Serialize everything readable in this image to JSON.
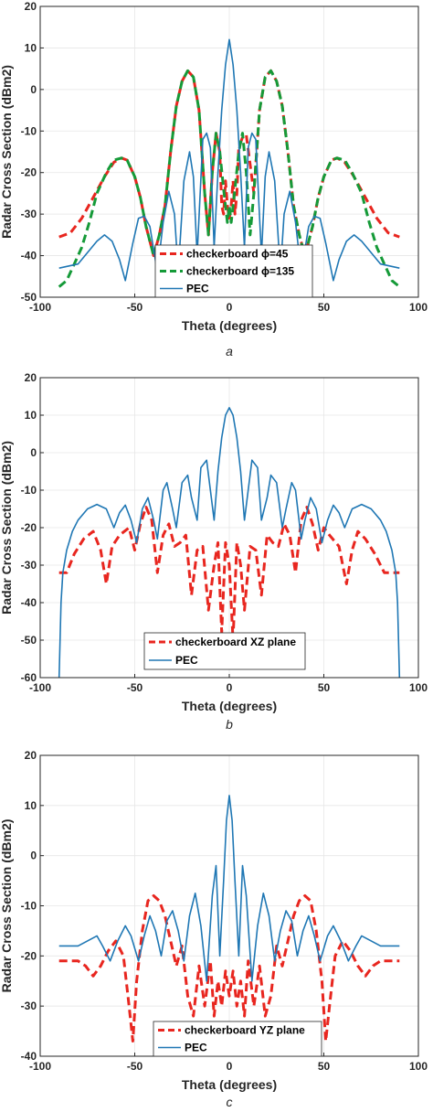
{
  "chart_data": [
    {
      "type": "line",
      "label": "a",
      "xlabel": "Theta (degrees)",
      "ylabel": "Radar Cross Section (dBm2)",
      "xlim": [
        -100,
        100
      ],
      "ylim": [
        -50,
        20
      ],
      "xticks": [
        -100,
        -50,
        0,
        50,
        100
      ],
      "xtick_labels": [
        "-100",
        "-50",
        "0",
        "50",
        "100"
      ],
      "yticks": [
        20,
        10,
        0,
        -10,
        -20,
        -30,
        -40,
        -50
      ],
      "ytick_labels": [
        "20",
        "10",
        "0",
        "-10",
        "-20",
        "-30",
        "-40",
        "-50"
      ],
      "grid": true,
      "legend_position": "bottom-center",
      "series": [
        {
          "name": "checkerboard ϕ=45",
          "color": "#e8261f",
          "dashed": true,
          "x": [
            -90,
            -84,
            -78,
            -72,
            -66,
            -61,
            -57,
            -54,
            -50,
            -47,
            -44,
            -40,
            -37,
            -34,
            -31,
            -28,
            -25,
            -22,
            -19,
            -16,
            -13,
            -11,
            -9,
            -7,
            -5,
            -4,
            -3,
            -2,
            -1,
            0,
            1,
            2,
            3,
            4,
            5,
            7,
            9,
            11,
            13,
            16,
            19,
            22,
            25,
            28,
            31,
            34,
            37,
            40,
            44,
            47,
            50,
            54,
            57,
            61,
            66,
            72,
            78,
            84,
            90
          ],
          "y": [
            -35.5,
            -34.5,
            -31,
            -26,
            -21,
            -17.5,
            -16.5,
            -17,
            -21,
            -26,
            -33,
            -40,
            -35,
            -28,
            -15,
            -4,
            2,
            4.5,
            3,
            -5,
            -25,
            -35,
            -20,
            -10.5,
            -15,
            -28,
            -30,
            -22,
            -28,
            -31,
            -28,
            -22,
            -30,
            -25,
            -14,
            -11.5,
            -11,
            -18,
            -25,
            -5,
            3,
            4.5,
            2,
            -4,
            -15,
            -28,
            -35,
            -40,
            -33,
            -26,
            -21,
            -17,
            -16.5,
            -17.5,
            -21,
            -26,
            -31,
            -34.5,
            -35.5
          ]
        },
        {
          "name": "checkerboard ϕ=135",
          "color": "#159a38",
          "dashed": true,
          "x": [
            -90,
            -86,
            -82,
            -78,
            -74,
            -70,
            -65,
            -61,
            -57,
            -54,
            -50,
            -47,
            -44,
            -40,
            -37,
            -34,
            -31,
            -28,
            -25,
            -22,
            -19,
            -16,
            -13,
            -11,
            -9,
            -7,
            -5,
            -3,
            -1,
            0,
            1,
            3,
            5,
            7,
            9,
            11,
            13,
            16,
            19,
            22,
            25,
            28,
            31,
            34,
            37,
            40,
            44,
            47,
            50,
            54,
            57,
            61,
            65,
            70,
            74,
            78,
            82,
            86,
            90
          ],
          "y": [
            -47.5,
            -46,
            -42,
            -38,
            -32,
            -25,
            -20,
            -17,
            -16.5,
            -17,
            -21,
            -26,
            -33,
            -40,
            -35,
            -28,
            -15,
            -4,
            2,
            4.5,
            3,
            -5,
            -25,
            -35,
            -20,
            -10.5,
            -15,
            -24,
            -32,
            -28,
            -32,
            -24,
            -15,
            -10.5,
            -20,
            -35,
            -25,
            -5,
            3,
            4.5,
            2,
            -4,
            -15,
            -28,
            -35,
            -40,
            -33,
            -26,
            -21,
            -17,
            -16.5,
            -17,
            -20,
            -25,
            -32,
            -38,
            -42,
            -46,
            -47.5
          ]
        },
        {
          "name": "PEC",
          "color": "#1f77b4",
          "dashed": false,
          "x": [
            -90,
            -80,
            -70,
            -66,
            -62,
            -58,
            -55,
            -51,
            -48,
            -45,
            -42,
            -38,
            -35,
            -32,
            -29,
            -27,
            -24,
            -21,
            -19,
            -17,
            -14,
            -12,
            -10,
            -8,
            -6,
            -4,
            -2,
            0,
            2,
            4,
            6,
            8,
            10,
            12,
            14,
            17,
            19,
            21,
            24,
            27,
            29,
            32,
            35,
            38,
            42,
            45,
            48,
            51,
            55,
            58,
            62,
            66,
            70,
            80,
            90
          ],
          "y": [
            -43,
            -42,
            -36.5,
            -35,
            -36.5,
            -41,
            -46,
            -37,
            -31,
            -30.5,
            -33,
            -44,
            -32,
            -24.5,
            -30,
            -44,
            -22,
            -15,
            -21,
            -40,
            -12,
            -10.5,
            -14,
            -38,
            -20,
            -5,
            6,
            12,
            6,
            -5,
            -20,
            -38,
            -14,
            -10.5,
            -12,
            -40,
            -21,
            -15,
            -22,
            -44,
            -30,
            -24.5,
            -32,
            -44,
            -33,
            -30.5,
            -31,
            -37,
            -46,
            -41,
            -36.5,
            -35,
            -36.5,
            -42,
            -43
          ]
        }
      ]
    },
    {
      "type": "line",
      "label": "b",
      "xlabel": "Theta (degrees)",
      "ylabel": "Radar Cross Section (dBm2)",
      "xlim": [
        -100,
        100
      ],
      "ylim": [
        -60,
        20
      ],
      "xticks": [
        -100,
        -50,
        0,
        50,
        100
      ],
      "xtick_labels": [
        "-100",
        "-50",
        "0",
        "50",
        "100"
      ],
      "yticks": [
        20,
        10,
        0,
        -10,
        -20,
        -30,
        -40,
        -50,
        -60
      ],
      "ytick_labels": [
        "20",
        "10",
        "0",
        "-10",
        "-20",
        "-30",
        "-40",
        "-50",
        "-60"
      ],
      "grid": true,
      "legend_position": "bottom-center",
      "series": [
        {
          "name": "checkerboard XZ plane",
          "color": "#e8261f",
          "dashed": true,
          "x": [
            -90,
            -86,
            -82,
            -77,
            -72,
            -68,
            -65,
            -62,
            -58,
            -53,
            -50,
            -47,
            -44,
            -41,
            -38,
            -35,
            -32,
            -29,
            -26,
            -23,
            -20,
            -17,
            -14,
            -11,
            -8,
            -6,
            -4,
            -2,
            0,
            2,
            4,
            6,
            8,
            11,
            14,
            17,
            20,
            23,
            26,
            29,
            32,
            35,
            38,
            41,
            44,
            47,
            50,
            53,
            58,
            62,
            65,
            68,
            72,
            77,
            82,
            86,
            90
          ],
          "y": [
            -32,
            -32,
            -27,
            -23,
            -21,
            -26,
            -35,
            -25,
            -22,
            -20,
            -26,
            -19,
            -14.5,
            -18,
            -32,
            -22,
            -19,
            -25,
            -24,
            -22,
            -38,
            -26,
            -25,
            -42,
            -30,
            -24,
            -48,
            -24,
            -30,
            -50,
            -24,
            -30,
            -42,
            -25,
            -26,
            -38,
            -22,
            -24,
            -25,
            -19,
            -22,
            -32,
            -18,
            -14.5,
            -19,
            -26,
            -20,
            -22,
            -25,
            -35,
            -26,
            -21,
            -23,
            -27,
            -32,
            -32,
            -32
          ]
        },
        {
          "name": "PEC",
          "color": "#1f77b4",
          "dashed": false,
          "x": [
            -90,
            -89,
            -88,
            -86,
            -83,
            -80,
            -75,
            -70,
            -65,
            -61,
            -58,
            -55,
            -52,
            -49,
            -46,
            -43,
            -40,
            -38,
            -35,
            -33,
            -30,
            -28,
            -25,
            -22,
            -20,
            -17,
            -15,
            -12,
            -10,
            -8,
            -6,
            -4,
            -2,
            0,
            2,
            4,
            6,
            8,
            10,
            12,
            15,
            17,
            20,
            22,
            25,
            28,
            30,
            33,
            35,
            38,
            40,
            43,
            46,
            49,
            52,
            55,
            58,
            61,
            65,
            70,
            75,
            80,
            83,
            86,
            88,
            89,
            90
          ],
          "y": [
            -60,
            -40,
            -32,
            -26,
            -21,
            -18,
            -15,
            -13.8,
            -15,
            -20,
            -16,
            -14,
            -18,
            -24,
            -15,
            -12,
            -18,
            -23,
            -10,
            -8,
            -15,
            -20,
            -8,
            -6,
            -12,
            -18,
            -4,
            -2,
            -10,
            -18,
            -5,
            4,
            10,
            12,
            10,
            4,
            -5,
            -18,
            -10,
            -2,
            -4,
            -18,
            -12,
            -6,
            -8,
            -20,
            -15,
            -8,
            -10,
            -23,
            -18,
            -12,
            -15,
            -24,
            -18,
            -14,
            -16,
            -20,
            -15,
            -13.8,
            -15,
            -18,
            -21,
            -26,
            -32,
            -40,
            -60
          ]
        }
      ]
    },
    {
      "type": "line",
      "label": "c",
      "xlabel": "Theta (degrees)",
      "ylabel": "Radar Cross Section (dBm2)",
      "xlim": [
        -100,
        100
      ],
      "ylim": [
        -40,
        20
      ],
      "xticks": [
        -100,
        -50,
        0,
        50,
        100
      ],
      "xtick_labels": [
        "-100",
        "-50",
        "0",
        "50",
        "100"
      ],
      "yticks": [
        20,
        10,
        0,
        -10,
        -20,
        -30,
        -40
      ],
      "ytick_labels": [
        "20",
        "10",
        "0",
        "-10",
        "-20",
        "-30",
        "-40"
      ],
      "grid": true,
      "legend_position": "bottom-center",
      "series": [
        {
          "name": "checkerboard YZ plane",
          "color": "#e8261f",
          "dashed": true,
          "x": [
            -90,
            -84,
            -80,
            -76,
            -72,
            -68,
            -64,
            -60,
            -56,
            -53,
            -51,
            -49,
            -46,
            -43,
            -40,
            -37,
            -34,
            -31,
            -28,
            -25,
            -22,
            -19,
            -16,
            -13,
            -10,
            -8,
            -6,
            -4,
            -2,
            0,
            2,
            4,
            6,
            8,
            10,
            13,
            16,
            19,
            22,
            25,
            28,
            31,
            34,
            37,
            40,
            43,
            46,
            49,
            51,
            53,
            56,
            60,
            64,
            68,
            72,
            76,
            80,
            84,
            90
          ],
          "y": [
            -21,
            -21,
            -21,
            -22,
            -24,
            -22,
            -19,
            -17,
            -20,
            -30,
            -37,
            -25,
            -15,
            -9,
            -8,
            -9,
            -12,
            -17,
            -22,
            -18,
            -28,
            -32,
            -22,
            -30,
            -21,
            -32,
            -25,
            -30,
            -23,
            -28,
            -23,
            -30,
            -25,
            -32,
            -21,
            -30,
            -22,
            -32,
            -28,
            -18,
            -22,
            -17,
            -12,
            -9,
            -8,
            -9,
            -15,
            -25,
            -37,
            -30,
            -20,
            -17,
            -19,
            -22,
            -24,
            -22,
            -21,
            -21,
            -21
          ]
        },
        {
          "name": "PEC",
          "color": "#1f77b4",
          "dashed": false,
          "x": [
            -90,
            -80,
            -75,
            -70,
            -67,
            -63,
            -59,
            -55,
            -52,
            -48,
            -45,
            -42,
            -39,
            -36,
            -33,
            -30,
            -27,
            -24,
            -21,
            -18,
            -15,
            -12,
            -9,
            -7,
            -5,
            -3,
            -1.5,
            0,
            1.5,
            3,
            5,
            7,
            9,
            12,
            15,
            18,
            21,
            24,
            27,
            30,
            33,
            36,
            39,
            42,
            45,
            48,
            52,
            55,
            59,
            63,
            67,
            70,
            75,
            80,
            90
          ],
          "y": [
            -18,
            -18,
            -17,
            -16,
            -18,
            -21,
            -17,
            -14,
            -16,
            -21,
            -16,
            -12,
            -15,
            -20,
            -13,
            -11,
            -15,
            -21,
            -12,
            -7.5,
            -14,
            -25,
            -8,
            -2,
            -20,
            -5,
            7,
            12,
            7,
            -5,
            -20,
            -2,
            -8,
            -25,
            -14,
            -7.5,
            -12,
            -21,
            -15,
            -11,
            -13,
            -20,
            -15,
            -12,
            -16,
            -21,
            -16,
            -14,
            -17,
            -21,
            -18,
            -16,
            -17,
            -18,
            -18
          ]
        }
      ]
    }
  ]
}
